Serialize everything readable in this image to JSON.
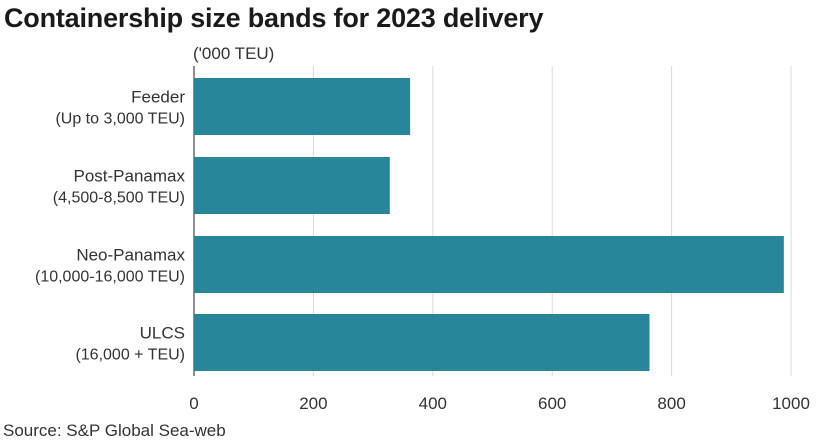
{
  "chart_data": {
    "type": "bar",
    "orientation": "horizontal",
    "title": "Containership size bands for 2023 delivery",
    "unit_label": "('000 TEU)",
    "source": "Source: S&P Global Sea-web",
    "categories": [
      {
        "name": "Feeder",
        "range": "(Up to 3,000 TEU)"
      },
      {
        "name": "Post-Panamax",
        "range": "(4,500-8,500 TEU)"
      },
      {
        "name": "Neo-Panamax",
        "range": "(10,000-16,000 TEU)"
      },
      {
        "name": "ULCS",
        "range": "(16,000 + TEU)"
      }
    ],
    "values": [
      362,
      328,
      988,
      763
    ],
    "xlim": [
      0,
      1000
    ],
    "xticks": [
      0,
      200,
      400,
      600,
      800,
      1000
    ],
    "xtick_labels": [
      "0",
      "200",
      "400",
      "600",
      "800",
      "1000"
    ],
    "grid": true,
    "bar_color": "#27869a"
  }
}
